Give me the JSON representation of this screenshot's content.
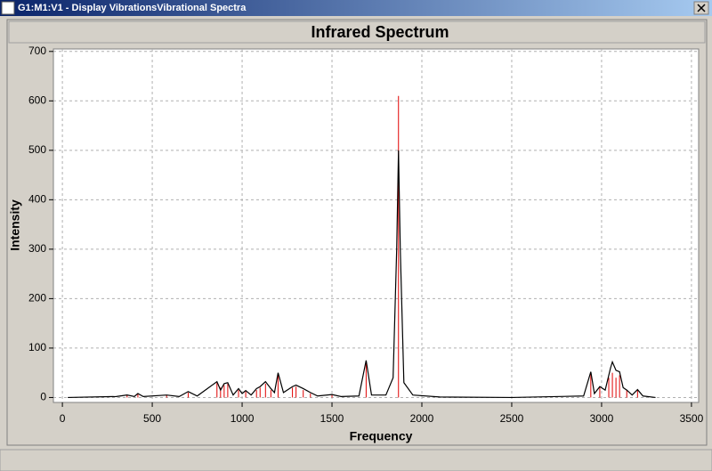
{
  "window": {
    "title": "G1:M1:V1 - Display VibrationsVibrational Spectra"
  },
  "chart_data": {
    "type": "line",
    "title": "Infrared Spectrum",
    "x_label": "Frequency",
    "y_label": "Intensity",
    "xlim": [
      -50,
      3540
    ],
    "ylim": [
      -10,
      705
    ],
    "xticks": [
      0,
      500,
      1000,
      1500,
      2000,
      2500,
      3000,
      3500
    ],
    "yticks": [
      0,
      100,
      200,
      300,
      400,
      500,
      600,
      700
    ],
    "grid": true,
    "series": [
      {
        "style": "stick",
        "color": "#e00000",
        "x": [
          360,
          420,
          580,
          700,
          860,
          880,
          900,
          920,
          980,
          1020,
          1080,
          1100,
          1130,
          1160,
          1200,
          1280,
          1300,
          1340,
          1380,
          1500,
          1690,
          1870,
          2940,
          2990,
          3040,
          3060,
          3080,
          3100,
          3140,
          3200
        ],
        "values": [
          5,
          8,
          5,
          10,
          30,
          20,
          25,
          28,
          15,
          12,
          15,
          20,
          28,
          15,
          48,
          20,
          22,
          15,
          8,
          5,
          70,
          610,
          50,
          20,
          40,
          50,
          40,
          45,
          15,
          15
        ]
      },
      {
        "style": "curve",
        "color": "#000000",
        "x": [
          30,
          300,
          360,
          400,
          420,
          450,
          580,
          650,
          700,
          750,
          860,
          880,
          900,
          920,
          950,
          980,
          1000,
          1020,
          1050,
          1080,
          1100,
          1130,
          1160,
          1180,
          1200,
          1230,
          1280,
          1300,
          1340,
          1380,
          1420,
          1500,
          1550,
          1650,
          1690,
          1720,
          1800,
          1840,
          1860,
          1870,
          1880,
          1900,
          1950,
          2100,
          2500,
          2900,
          2940,
          2960,
          2990,
          3020,
          3050,
          3060,
          3080,
          3100,
          3120,
          3140,
          3170,
          3200,
          3230,
          3300
        ],
        "values": [
          0,
          2,
          5,
          2,
          8,
          2,
          5,
          2,
          12,
          3,
          32,
          15,
          28,
          30,
          5,
          18,
          8,
          14,
          5,
          18,
          22,
          32,
          18,
          10,
          50,
          10,
          22,
          25,
          18,
          10,
          3,
          6,
          2,
          3,
          75,
          5,
          5,
          40,
          300,
          500,
          300,
          30,
          5,
          1,
          0,
          3,
          52,
          8,
          22,
          15,
          60,
          72,
          55,
          52,
          20,
          15,
          5,
          16,
          3,
          0
        ]
      }
    ]
  }
}
